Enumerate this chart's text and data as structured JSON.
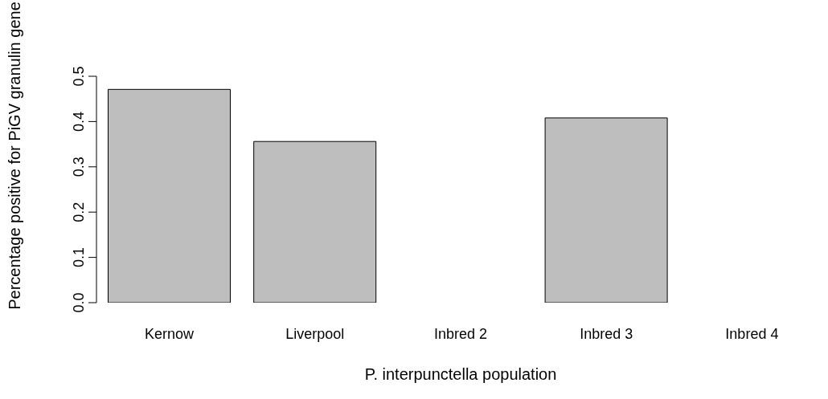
{
  "chart_data": {
    "type": "bar",
    "xlabel": "P. interpunctella population",
    "ylabel": "Percentage positive for PiGV granulin gene",
    "categories": [
      "Kernow",
      "Liverpool",
      "Inbred 2",
      "Inbred 3",
      "Inbred 4"
    ],
    "values": [
      0.471,
      0.356,
      0,
      0.408,
      0
    ],
    "color": "#bebebe",
    "ylim": [
      0,
      0.5
    ],
    "yticks": [
      {
        "value": 0,
        "label": "0.0"
      },
      {
        "value": 0.1,
        "label": "0.1"
      },
      {
        "value": 0.2,
        "label": "0.2"
      },
      {
        "value": 0.3,
        "label": "0.3"
      },
      {
        "value": 0.4,
        "label": "0.4"
      },
      {
        "value": 0.5,
        "label": "0.5"
      }
    ],
    "grid": false,
    "legend": false
  }
}
